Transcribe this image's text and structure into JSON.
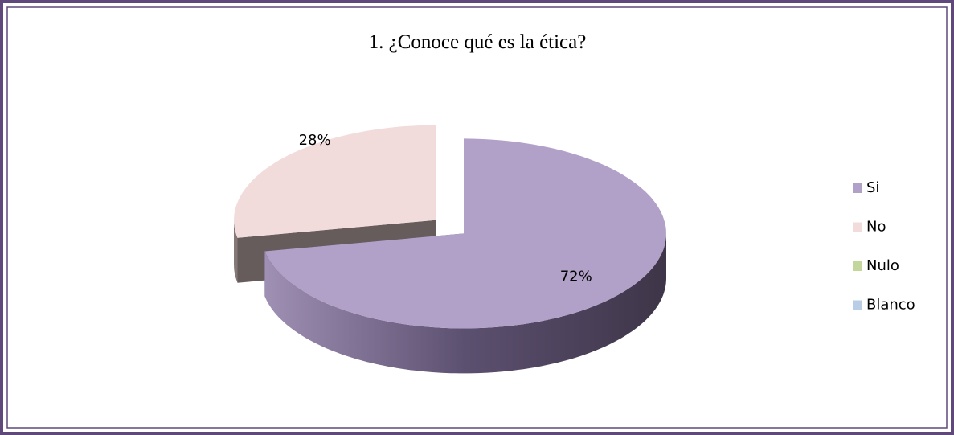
{
  "chart_data": {
    "type": "pie",
    "title": "1. ¿Conoce qué es la ética?",
    "categories": [
      "Si",
      "No",
      "Nulo",
      "Blanco"
    ],
    "values": [
      72,
      28,
      0,
      0
    ],
    "value_labels": [
      "72%",
      "28%",
      null,
      null
    ],
    "colors": [
      "#b1a0c7",
      "#f2dcdb",
      "#c3d69b",
      "#b9cde5"
    ],
    "legend": "right"
  }
}
